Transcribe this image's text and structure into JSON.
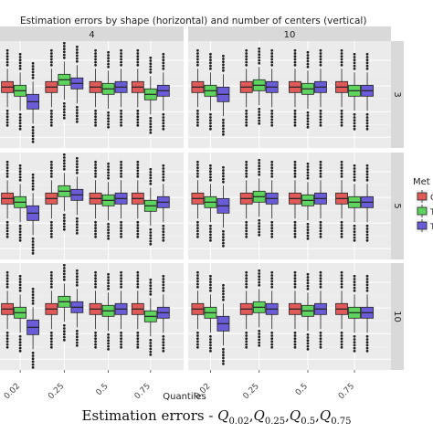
{
  "chart_data": {
    "type": "boxplot",
    "title": "Estimation errors by shape (horizontal) and number of centers (vertical)",
    "xlabel": "Quantiles",
    "ylabel": "",
    "x_categories": [
      "0.02",
      "0.25",
      "0.5",
      "0.75"
    ],
    "facet_cols": [
      "4",
      "10"
    ],
    "facet_rows": [
      "3",
      "5",
      "10"
    ],
    "legend": {
      "title": "Met",
      "placement": "right",
      "entries": [
        "Q",
        "T",
        "T"
      ]
    },
    "colors": {
      "methods": [
        "#e05a5a",
        "#5fd35f",
        "#6a5cd6"
      ],
      "panel_bg": "#ebebeb",
      "strip_bg": "#d9d9d9"
    },
    "series_note": "three methods per quantile; values are box medians in relative error units (axis unlabeled)",
    "panels": [
      {
        "col": "4",
        "row": "3",
        "medians": [
          [
            0.0,
            -0.1,
            -0.4
          ],
          [
            0.0,
            0.2,
            0.1
          ],
          [
            0.0,
            -0.05,
            0.0
          ],
          [
            0.0,
            -0.2,
            -0.1
          ]
        ]
      },
      {
        "col": "10",
        "row": "3",
        "medians": [
          [
            0.0,
            -0.1,
            -0.2
          ],
          [
            0.0,
            0.05,
            0.0
          ],
          [
            0.0,
            -0.05,
            0.0
          ],
          [
            0.0,
            -0.1,
            -0.1
          ]
        ]
      },
      {
        "col": "4",
        "row": "5",
        "medians": [
          [
            0.0,
            -0.1,
            -0.4
          ],
          [
            0.0,
            0.2,
            0.1
          ],
          [
            0.0,
            -0.05,
            0.0
          ],
          [
            0.0,
            -0.2,
            -0.1
          ]
        ]
      },
      {
        "col": "10",
        "row": "5",
        "medians": [
          [
            0.0,
            -0.1,
            -0.2
          ],
          [
            0.0,
            0.05,
            0.0
          ],
          [
            0.0,
            -0.05,
            0.0
          ],
          [
            0.0,
            -0.1,
            -0.1
          ]
        ]
      },
      {
        "col": "4",
        "row": "10",
        "medians": [
          [
            0.0,
            -0.1,
            -0.5
          ],
          [
            0.0,
            0.2,
            0.05
          ],
          [
            0.0,
            -0.05,
            0.0
          ],
          [
            0.0,
            -0.2,
            -0.1
          ]
        ]
      },
      {
        "col": "10",
        "row": "10",
        "medians": [
          [
            0.0,
            -0.1,
            -0.4
          ],
          [
            0.0,
            0.05,
            0.0
          ],
          [
            0.0,
            -0.05,
            0.0
          ],
          [
            0.0,
            -0.1,
            -0.1
          ]
        ]
      }
    ]
  },
  "caption": {
    "prefix": "Estimation errors - ",
    "terms": [
      {
        "base": "Q",
        "sub": "0.02"
      },
      {
        "base": "Q",
        "sub": "0.25"
      },
      {
        "base": "Q",
        "sub": "0.5"
      },
      {
        "base": "Q",
        "sub": "0.75"
      }
    ]
  }
}
